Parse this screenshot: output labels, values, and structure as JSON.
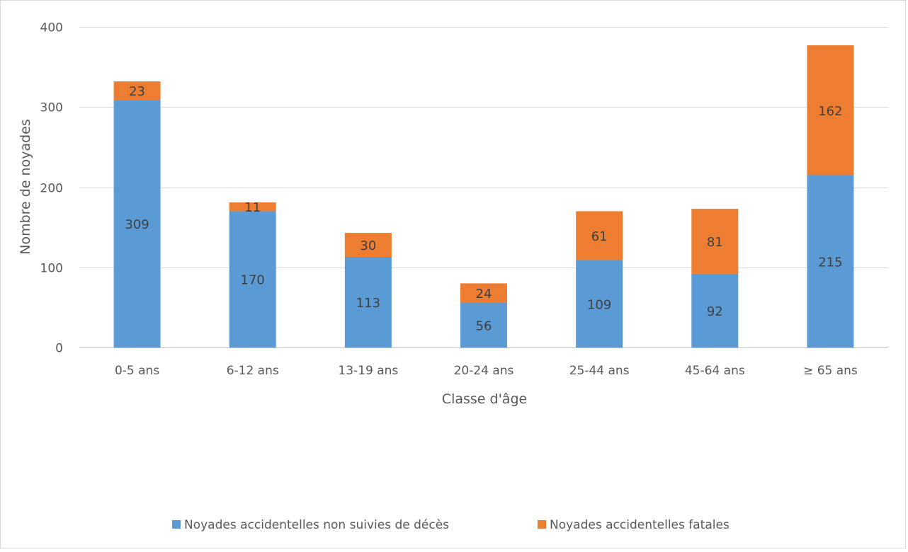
{
  "chart_data": {
    "type": "bar",
    "stacked": true,
    "categories": [
      "0-5 ans",
      "6-12 ans",
      "13-19 ans",
      "20-24 ans",
      "25-44 ans",
      "45-64 ans",
      "≥ 65 ans"
    ],
    "series": [
      {
        "name": "Noyades accidentelles non suivies de décès",
        "color": "#5b9bd5",
        "values": [
          309,
          170,
          113,
          56,
          109,
          92,
          215
        ]
      },
      {
        "name": "Noyades accidentelles fatales",
        "color": "#ed7d31",
        "values": [
          23,
          11,
          30,
          24,
          61,
          81,
          162
        ]
      }
    ],
    "xlabel": "Classe d'âge",
    "ylabel": "Nombre de noyades",
    "ylim": [
      0,
      400
    ],
    "yticks": [
      0,
      100,
      200,
      300,
      400
    ],
    "grid": true,
    "legend_position": "bottom"
  }
}
